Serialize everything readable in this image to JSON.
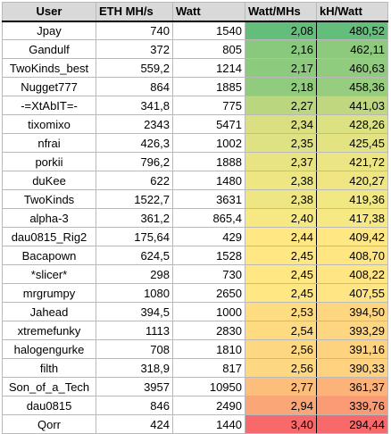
{
  "headers": {
    "user": "User",
    "eth_mhs": "ETH MH/s",
    "watt": "Watt",
    "watt_per_mhs": "Watt/MHs",
    "kh_per_watt": "kH/Watt"
  },
  "rows": [
    {
      "user": "Jpay",
      "mhs": "740",
      "watt": "1540",
      "wpm": "2,08",
      "khw": "480,52"
    },
    {
      "user": "Gandulf",
      "mhs": "372",
      "watt": "805",
      "wpm": "2,16",
      "khw": "462,11"
    },
    {
      "user": "TwoKinds_best",
      "mhs": "559,2",
      "watt": "1214",
      "wpm": "2,17",
      "khw": "460,63"
    },
    {
      "user": "Nugget777",
      "mhs": "864",
      "watt": "1885",
      "wpm": "2,18",
      "khw": "458,36"
    },
    {
      "user": "-=XtAbIT=-",
      "mhs": "341,8",
      "watt": "775",
      "wpm": "2,27",
      "khw": "441,03"
    },
    {
      "user": "tixomixo",
      "mhs": "2343",
      "watt": "5471",
      "wpm": "2,34",
      "khw": "428,26"
    },
    {
      "user": "nfrai",
      "mhs": "426,3",
      "watt": "1002",
      "wpm": "2,35",
      "khw": "425,45"
    },
    {
      "user": "porkii",
      "mhs": "796,2",
      "watt": "1888",
      "wpm": "2,37",
      "khw": "421,72"
    },
    {
      "user": "duKee",
      "mhs": "622",
      "watt": "1480",
      "wpm": "2,38",
      "khw": "420,27"
    },
    {
      "user": "TwoKinds",
      "mhs": "1522,7",
      "watt": "3631",
      "wpm": "2,38",
      "khw": "419,36"
    },
    {
      "user": "alpha-3",
      "mhs": "361,2",
      "watt": "865,4",
      "wpm": "2,40",
      "khw": "417,38"
    },
    {
      "user": "dau0815_Rig2",
      "mhs": "175,64",
      "watt": "429",
      "wpm": "2,44",
      "khw": "409,42"
    },
    {
      "user": "Bacapown",
      "mhs": "624,5",
      "watt": "1528",
      "wpm": "2,45",
      "khw": "408,70"
    },
    {
      "user": "*slicer*",
      "mhs": "298",
      "watt": "730",
      "wpm": "2,45",
      "khw": "408,22"
    },
    {
      "user": "mrgrumpy",
      "mhs": "1080",
      "watt": "2650",
      "wpm": "2,45",
      "khw": "407,55"
    },
    {
      "user": "Jahead",
      "mhs": "394,5",
      "watt": "1000",
      "wpm": "2,53",
      "khw": "394,50"
    },
    {
      "user": "xtremefunky",
      "mhs": "1113",
      "watt": "2830",
      "wpm": "2,54",
      "khw": "393,29"
    },
    {
      "user": "halogengurke",
      "mhs": "708",
      "watt": "1810",
      "wpm": "2,56",
      "khw": "391,16"
    },
    {
      "user": "filth",
      "mhs": "318,9",
      "watt": "817",
      "wpm": "2,56",
      "khw": "390,33"
    },
    {
      "user": "Son_of_a_Tech",
      "mhs": "3957",
      "watt": "10950",
      "wpm": "2,77",
      "khw": "361,37"
    },
    {
      "user": "dau0815",
      "mhs": "846",
      "watt": "2490",
      "wpm": "2,94",
      "khw": "339,76"
    },
    {
      "user": "Qorr",
      "mhs": "424",
      "watt": "1440",
      "wpm": "3,40",
      "khw": "294,44"
    }
  ],
  "colors": {
    "header_bg": "#d9d9d9",
    "scale": [
      "#63be7b",
      "#ffeb84",
      "#f8696b"
    ]
  }
}
